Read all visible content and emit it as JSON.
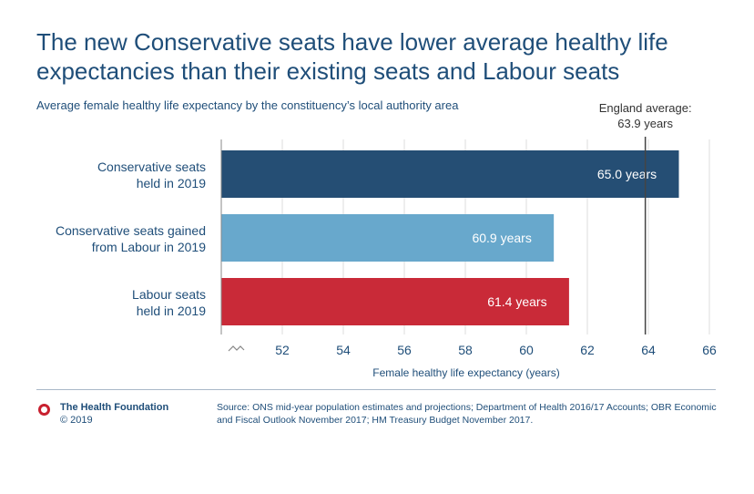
{
  "chart_data": {
    "type": "bar",
    "orientation": "horizontal",
    "title": "The new Conservative seats have lower average healthy life expectancies than their existing seats and Labour seats",
    "subtitle": "Average female healthy life expectancy by the constituency’s local authority area",
    "xlabel": "Female healthy life expectancy (years)",
    "xlim": [
      50,
      66
    ],
    "xticks": [
      52,
      54,
      56,
      58,
      60,
      62,
      64,
      66
    ],
    "axis_break": true,
    "grid": "vertical",
    "categories": [
      [
        "Conservative seats",
        "held in 2019"
      ],
      [
        "Conservative seats gained",
        "from Labour in 2019"
      ],
      [
        "Labour seats",
        "held in 2019"
      ]
    ],
    "values": [
      65.0,
      60.9,
      61.4
    ],
    "value_labels": [
      "65.0 years",
      "60.9 years",
      "61.4 years"
    ],
    "colors": [
      "#254e74",
      "#68a8cc",
      "#c92a38"
    ],
    "reference_line": {
      "value": 63.9,
      "label": [
        "England average:",
        "63.9 years"
      ]
    }
  },
  "footer": {
    "org_name": "The Health Foundation",
    "copyright": "© 2019",
    "source": "Source: ONS mid-year population estimates and projections; Department of Health 2016/17 Accounts; OBR Economic and Fiscal Outlook November 2017; HM Treasury Budget November 2017."
  }
}
